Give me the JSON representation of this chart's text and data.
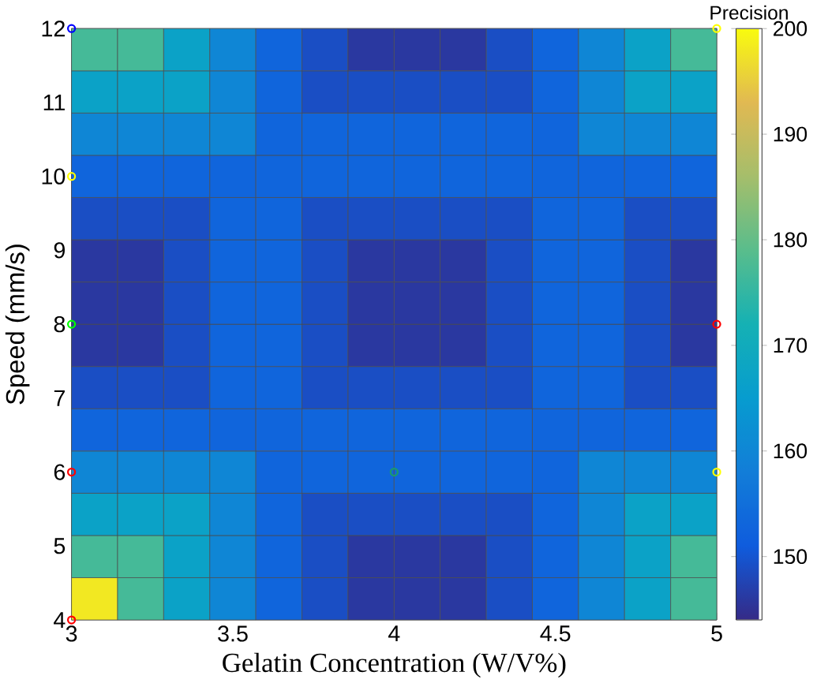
{
  "chart_data": {
    "type": "heatmap",
    "xlabel": "Gelatin Concentration (W/V%)",
    "ylabel": "Speed (mm/s)",
    "clabel": "Precision",
    "cells": [
      [
        177,
        177,
        167,
        160,
        153,
        149,
        146,
        146,
        146,
        149,
        153,
        160,
        167,
        177
      ],
      [
        167,
        167,
        167,
        160,
        153,
        149,
        149,
        149,
        149,
        149,
        153,
        160,
        167,
        167
      ],
      [
        160,
        160,
        160,
        160,
        153,
        153,
        153,
        153,
        153,
        153,
        153,
        160,
        160,
        160
      ],
      [
        153,
        153,
        153,
        153,
        153,
        153,
        153,
        153,
        153,
        153,
        153,
        153,
        153,
        153
      ],
      [
        149,
        149,
        149,
        153,
        153,
        149,
        149,
        149,
        149,
        149,
        153,
        153,
        149,
        149
      ],
      [
        146,
        146,
        149,
        153,
        153,
        149,
        146,
        146,
        146,
        149,
        153,
        153,
        149,
        146
      ],
      [
        146,
        146,
        149,
        153,
        153,
        149,
        146,
        146,
        146,
        149,
        153,
        153,
        149,
        146
      ],
      [
        146,
        146,
        149,
        153,
        153,
        149,
        146,
        146,
        146,
        149,
        153,
        153,
        149,
        146
      ],
      [
        149,
        149,
        149,
        153,
        153,
        149,
        149,
        149,
        149,
        149,
        153,
        153,
        149,
        149
      ],
      [
        153,
        153,
        153,
        153,
        153,
        153,
        153,
        153,
        153,
        153,
        153,
        153,
        153,
        153
      ],
      [
        160,
        160,
        160,
        160,
        153,
        153,
        153,
        153,
        153,
        153,
        153,
        160,
        160,
        160
      ],
      [
        167,
        167,
        167,
        160,
        153,
        149,
        149,
        149,
        149,
        149,
        153,
        160,
        167,
        167
      ],
      [
        177,
        177,
        167,
        160,
        153,
        149,
        146,
        146,
        146,
        149,
        153,
        160,
        167,
        177
      ],
      [
        198,
        177,
        167,
        160,
        153,
        149,
        146,
        146,
        146,
        149,
        153,
        160,
        167,
        177
      ]
    ],
    "clim": [
      144,
      200
    ],
    "cticks": [
      150,
      160,
      170,
      180,
      190,
      200
    ],
    "xlim": [
      3,
      5
    ],
    "xticks": [
      3,
      3.5,
      4,
      4.5,
      5
    ],
    "ylim": [
      4,
      12
    ],
    "yticks": [
      4,
      5,
      6,
      7,
      8,
      9,
      10,
      11,
      12
    ],
    "marker": "circle",
    "series": [
      {
        "type": "scatter",
        "x": [
          3,
          5,
          3,
          3,
          5,
          3,
          4,
          5,
          3
        ],
        "values": [
          12,
          12,
          10,
          8,
          8,
          6,
          6,
          6,
          4
        ],
        "colors": [
          "#0000ff",
          "#ffff00",
          "#ffff00",
          "#00ff00",
          "#ff0000",
          "#ff0000",
          "#1a9a6e",
          "#ffff00",
          "#ff0000"
        ]
      }
    ]
  }
}
